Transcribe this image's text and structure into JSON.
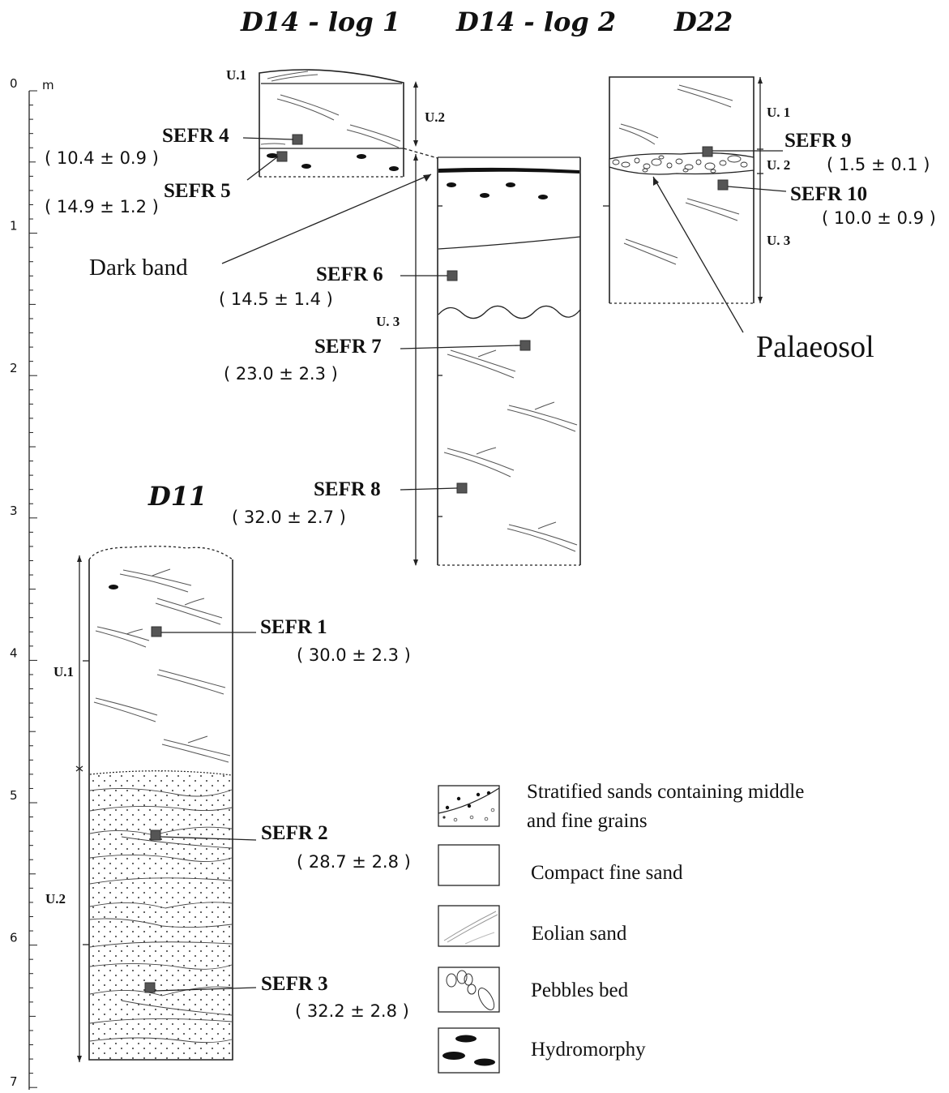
{
  "logs": {
    "d14_log1": {
      "title": "D14 - log 1",
      "units": [
        "U.1",
        "U.2"
      ]
    },
    "d14_log2": {
      "title": "D14 - log 2",
      "units": [
        "U. 3"
      ]
    },
    "d22": {
      "title": "D22",
      "units": [
        "U. 1",
        "U. 2",
        "U. 3"
      ]
    },
    "d11": {
      "title": "D11",
      "units": [
        "U.1",
        "U.2"
      ]
    }
  },
  "depth_axis": {
    "unit": "m",
    "ticks": [
      "0",
      "1",
      "2",
      "3",
      "4",
      "5",
      "6",
      "7"
    ]
  },
  "samples": [
    {
      "id": "SEFR 1",
      "age": "( 30.0 ± 2.3 )"
    },
    {
      "id": "SEFR 2",
      "age": "( 28.7 ± 2.8 )"
    },
    {
      "id": "SEFR 3",
      "age": "( 32.2 ± 2.8 )"
    },
    {
      "id": "SEFR 4",
      "age": "( 10.4 ± 0.9 )"
    },
    {
      "id": "SEFR 5",
      "age": "( 14.9 ± 1.2 )"
    },
    {
      "id": "SEFR 6",
      "age": "( 14.5 ± 1.4 )"
    },
    {
      "id": "SEFR 7",
      "age": "( 23.0 ± 2.3 )"
    },
    {
      "id": "SEFR 8",
      "age": "( 32.0 ± 2.7 )"
    },
    {
      "id": "SEFR 9",
      "age": "( 1.5 ± 0.1 )"
    },
    {
      "id": "SEFR 10",
      "age": "( 10.0 ± 0.9 )"
    }
  ],
  "annotations": {
    "dark_band": "Dark band",
    "palaeosol": "Palaeosol"
  },
  "legend": [
    {
      "label_lines": [
        "Stratified sands containing middle",
        "and fine grains"
      ],
      "icon": "stratified-sand-icon"
    },
    {
      "label_lines": [
        "Compact fine sand"
      ],
      "icon": "compact-sand-icon"
    },
    {
      "label_lines": [
        "Eolian sand"
      ],
      "icon": "eolian-sand-icon"
    },
    {
      "label_lines": [
        "Pebbles bed"
      ],
      "icon": "pebbles-icon"
    },
    {
      "label_lines": [
        "Hydromorphy"
      ],
      "icon": "hydromorphy-icon"
    }
  ],
  "colors": {
    "ink": "#111111",
    "sample_marker": "#555555"
  }
}
